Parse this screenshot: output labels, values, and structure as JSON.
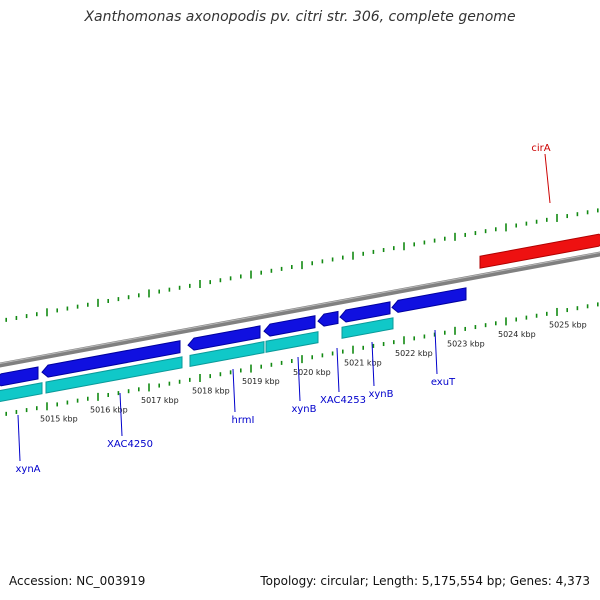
{
  "title": "Xanthomonas axonopodis pv. citri str. 306, complete genome",
  "footer": {
    "accession": "Accession: NC_003919",
    "summary": "Topology: circular; Length: 5,175,554 bp; Genes: 4,373"
  },
  "colors": {
    "backbone": "#808080",
    "forward_gene": "#1010e0",
    "cds": "#10c8c8",
    "highlight_gene": "#ee1111",
    "ticks": "#138a13",
    "gene_label": "#0000cc",
    "highlight_label": "#cc0000"
  },
  "scale": {
    "unit": "kbp",
    "labels": [
      "5015 kbp",
      "5016 kbp",
      "5017 kbp",
      "5018 kbp",
      "5019 kbp",
      "5020 kbp",
      "5021 kbp",
      "5022 kbp",
      "5023 kbp",
      "5024 kbp",
      "5025 kbp"
    ]
  },
  "genes": [
    {
      "name": "xynA",
      "strand": "reverse",
      "color": "blue"
    },
    {
      "name": "XAC4250",
      "strand": "reverse",
      "color": "blue"
    },
    {
      "name": "hrmI",
      "strand": "reverse",
      "color": "blue"
    },
    {
      "name": "xynB",
      "strand": "reverse",
      "color": "blue"
    },
    {
      "name": "XAC4253",
      "strand": "reverse",
      "color": "blue"
    },
    {
      "name": "xynB",
      "strand": "reverse",
      "color": "blue"
    },
    {
      "name": "exuT",
      "strand": "reverse",
      "color": "blue"
    },
    {
      "name": "cirA",
      "strand": "forward",
      "color": "red"
    }
  ]
}
